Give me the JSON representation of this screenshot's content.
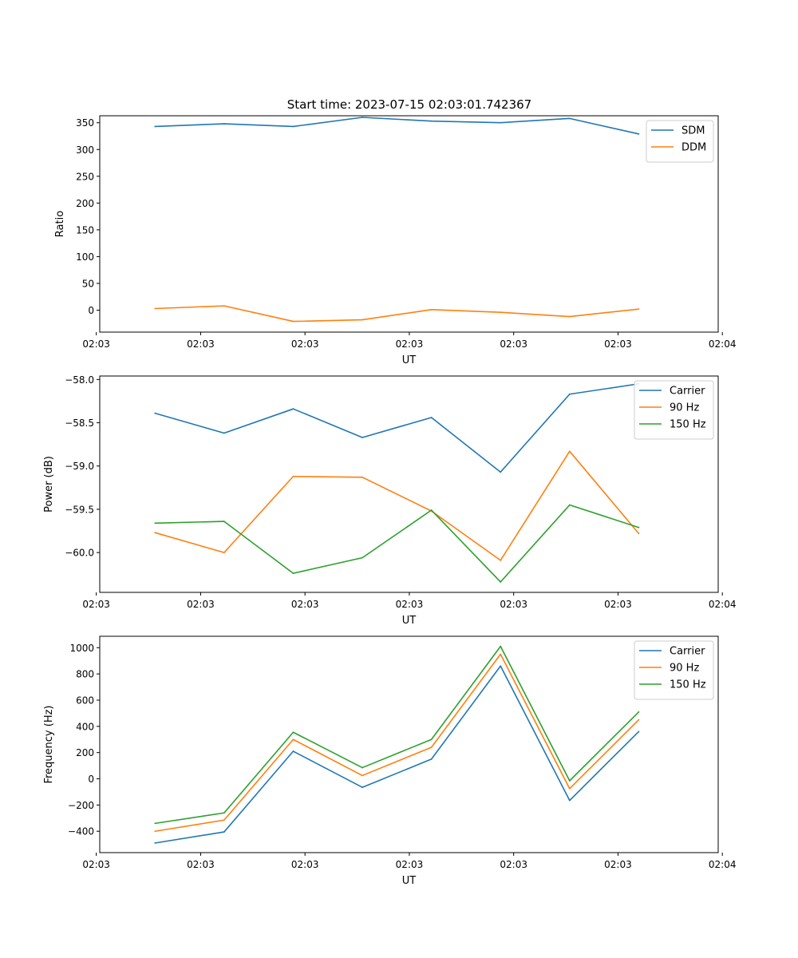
{
  "figure_title": "Start time: 2023-07-15 02:03:01.742367",
  "chart_data": [
    {
      "type": "line",
      "title": "Start time: 2023-07-15 02:03:01.742367",
      "xlabel": "UT",
      "ylabel": "Ratio",
      "x": [
        1,
        2,
        3,
        4,
        5,
        6,
        7,
        8
      ],
      "xlim": [
        0.2,
        9.15
      ],
      "x_tick_positions": [
        0.15,
        1.66,
        3.17,
        4.68,
        6.19,
        7.7,
        9.21
      ],
      "x_tick_labels": [
        "02:03",
        "02:03",
        "02:03",
        "02:03",
        "02:03",
        "02:03",
        "02:04"
      ],
      "ylim": [
        -41,
        363
      ],
      "y_ticks": [
        0,
        50,
        100,
        150,
        200,
        250,
        300,
        350
      ],
      "y_tick_labels": [
        "0",
        "50",
        "100",
        "150",
        "200",
        "250",
        "300",
        "350"
      ],
      "legend": "top-right",
      "series": [
        {
          "name": "SDM",
          "color": "#1f77b4",
          "values": [
            343,
            348,
            343,
            360,
            353,
            350,
            358,
            329
          ]
        },
        {
          "name": "DDM",
          "color": "#ff7f0e",
          "values": [
            3,
            8,
            -21,
            -18,
            1,
            -4,
            -12,
            2
          ]
        }
      ]
    },
    {
      "type": "line",
      "title": "",
      "xlabel": "UT",
      "ylabel": "Power (dB)",
      "x": [
        1,
        2,
        3,
        4,
        5,
        6,
        7,
        8
      ],
      "xlim": [
        0.2,
        9.15
      ],
      "x_tick_positions": [
        0.15,
        1.66,
        3.17,
        4.68,
        6.19,
        7.7,
        9.21
      ],
      "x_tick_labels": [
        "02:03",
        "02:03",
        "02:03",
        "02:03",
        "02:03",
        "02:03",
        "02:04"
      ],
      "ylim": [
        -60.46,
        -57.96
      ],
      "y_ticks": [
        -60.0,
        -59.5,
        -59.0,
        -58.5,
        -58.0
      ],
      "y_tick_labels": [
        "−60.0",
        "−59.5",
        "−59.0",
        "−58.5",
        "−58.0"
      ],
      "legend": "top-right",
      "series": [
        {
          "name": "Carrier",
          "color": "#1f77b4",
          "values": [
            -58.39,
            -58.62,
            -58.34,
            -58.67,
            -58.44,
            -59.07,
            -58.17,
            -58.05
          ]
        },
        {
          "name": "90 Hz",
          "color": "#ff7f0e",
          "values": [
            -59.77,
            -60.0,
            -59.12,
            -59.13,
            -59.52,
            -60.09,
            -58.83,
            -59.78
          ]
        },
        {
          "name": "150 Hz",
          "color": "#2ca02c",
          "values": [
            -59.66,
            -59.64,
            -60.24,
            -60.06,
            -59.51,
            -60.34,
            -59.45,
            -59.71
          ]
        }
      ]
    },
    {
      "type": "line",
      "title": "",
      "xlabel": "UT",
      "ylabel": "Frequency (Hz)",
      "x": [
        1,
        2,
        3,
        4,
        5,
        6,
        7,
        8
      ],
      "xlim": [
        0.2,
        9.15
      ],
      "x_tick_positions": [
        0.15,
        1.66,
        3.17,
        4.68,
        6.19,
        7.7,
        9.21
      ],
      "x_tick_labels": [
        "02:03",
        "02:03",
        "02:03",
        "02:03",
        "02:03",
        "02:03",
        "02:04"
      ],
      "ylim": [
        -563,
        1087
      ],
      "y_ticks": [
        -400,
        -200,
        0,
        200,
        400,
        600,
        800,
        1000
      ],
      "y_tick_labels": [
        "−400",
        "−200",
        "0",
        "200",
        "400",
        "600",
        "800",
        "1000"
      ],
      "legend": "top-right",
      "series": [
        {
          "name": "Carrier",
          "color": "#1f77b4",
          "values": [
            -490,
            -405,
            210,
            -65,
            150,
            860,
            -165,
            360
          ]
        },
        {
          "name": "90 Hz",
          "color": "#ff7f0e",
          "values": [
            -400,
            -315,
            300,
            25,
            240,
            950,
            -75,
            450
          ]
        },
        {
          "name": "150 Hz",
          "color": "#2ca02c",
          "values": [
            -340,
            -260,
            355,
            85,
            300,
            1010,
            -15,
            510
          ]
        }
      ]
    }
  ]
}
